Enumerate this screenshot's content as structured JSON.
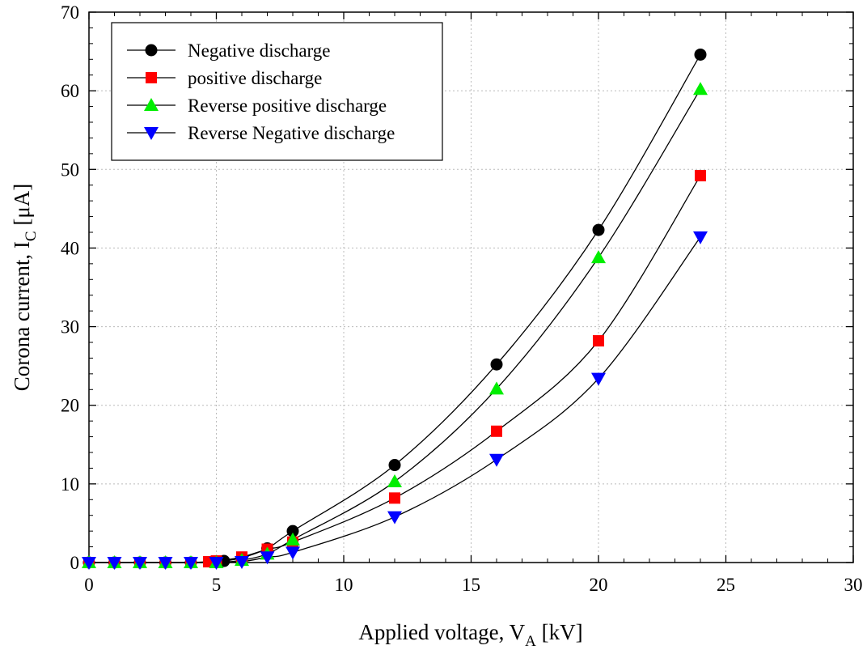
{
  "chart_data": {
    "type": "line",
    "title": "",
    "xlabel": {
      "main": "Applied voltage, V",
      "sub": "A",
      "tail": " [kV]"
    },
    "ylabel": {
      "main": "Corona current, I",
      "sub": "C",
      "tail": " [μA]"
    },
    "xlim": [
      0,
      30
    ],
    "ylim": [
      0,
      70
    ],
    "xticks": [
      0,
      5,
      10,
      15,
      20,
      25,
      30
    ],
    "yticks": [
      0,
      10,
      20,
      30,
      40,
      50,
      60,
      70
    ],
    "grid": true,
    "legend_position": "top-left",
    "series": [
      {
        "name": "Negative discharge",
        "marker": "circle",
        "color": "#000000",
        "x": [
          0,
          1,
          2,
          3,
          4,
          5,
          5.3,
          6,
          7,
          8,
          12,
          16,
          20,
          24
        ],
        "y": [
          0,
          0,
          0,
          0,
          0,
          0.1,
          0.2,
          0.6,
          1.8,
          4.0,
          12.4,
          25.2,
          42.3,
          64.6
        ]
      },
      {
        "name": "positive discharge",
        "marker": "square",
        "color": "#ff0000",
        "x": [
          0,
          1,
          2,
          3,
          4,
          4.7,
          5,
          6,
          7,
          8,
          12,
          16,
          20,
          24
        ],
        "y": [
          0,
          0,
          0,
          0,
          0,
          0.1,
          0.2,
          0.7,
          1.7,
          2.6,
          8.2,
          16.7,
          28.2,
          49.2
        ]
      },
      {
        "name": "Reverse positive discharge",
        "marker": "triangle-up",
        "color": "#00ee00",
        "x": [
          0,
          1,
          2,
          3,
          4,
          5,
          6,
          7,
          8,
          12,
          16,
          20,
          24
        ],
        "y": [
          0,
          0,
          0,
          0,
          0,
          0,
          0.3,
          1.1,
          2.9,
          10.3,
          22.1,
          38.8,
          60.2
        ]
      },
      {
        "name": "Reverse Negative discharge",
        "marker": "triangle-down",
        "color": "#0000ff",
        "x": [
          0,
          1,
          2,
          3,
          4,
          5,
          6,
          7,
          8,
          12,
          16,
          20,
          24
        ],
        "y": [
          0,
          0,
          0,
          0,
          0,
          0,
          0.1,
          0.7,
          1.3,
          5.8,
          13.1,
          23.4,
          41.4
        ]
      }
    ]
  }
}
